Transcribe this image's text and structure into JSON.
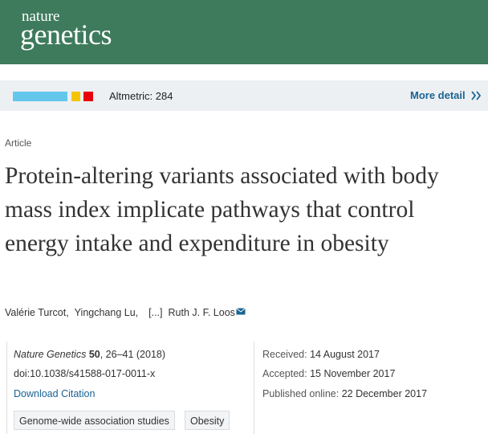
{
  "header": {
    "logo_top": "nature",
    "logo_bottom": "genetics"
  },
  "altmetric": {
    "label": "Altmetric: 284",
    "more": "More detail"
  },
  "article": {
    "type": "Article",
    "title": "Protein-altering variants associated with body mass index implicate pathways that control energy intake and expenditure in obesity",
    "authors": [
      "Valérie Turcot,",
      "Yingchang Lu,",
      "[...]",
      "Ruth J. F. Loos"
    ]
  },
  "citation": {
    "journal": "Nature Genetics",
    "volume": "50",
    "pages": ", 26–41 (2018)",
    "doi": "doi:10.1038/s41588-017-0011-x",
    "download": "Download Citation"
  },
  "dates": [
    {
      "label": "Received:",
      "value": "14 August 2017"
    },
    {
      "label": "Accepted:",
      "value": "15 November 2017"
    },
    {
      "label": "Published online:",
      "value": "22 December 2017"
    }
  ],
  "subjects": [
    "Genome-wide association studies",
    "Obesity"
  ]
}
